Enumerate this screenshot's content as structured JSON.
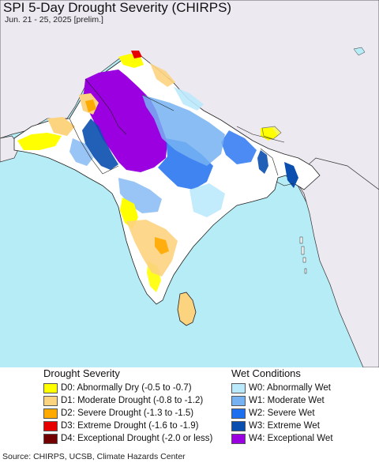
{
  "title": "SPI 5-Day Drought Severity (CHIRPS)",
  "subtitle": "Jun. 21 - 25, 2025 [prelim.]",
  "colors": {
    "ocean": "#b5ecf5",
    "land_outside": "#ece9f0",
    "land_neutral": "#ffffff",
    "border": "#222222",
    "d0": "#ffff00",
    "d1": "#fcd37f",
    "d2": "#ffaa00",
    "d3": "#e60000",
    "d4": "#730000",
    "w0": "#bbe9fc",
    "w1": "#76b2f2",
    "w2": "#1e6ef0",
    "w3": "#0a4fb0",
    "w4": "#9b00e0"
  },
  "legend": {
    "drought": {
      "heading": "Drought Severity",
      "items": [
        {
          "code": "d0",
          "label": "D0: Abnormally Dry (-0.5 to -0.7)"
        },
        {
          "code": "d1",
          "label": "D1: Moderate Drought (-0.8 to -1.2)"
        },
        {
          "code": "d2",
          "label": "D2: Severe Drought (-1.3 to -1.5)"
        },
        {
          "code": "d3",
          "label": "D3: Extreme Drought (-1.6 to -1.9)"
        },
        {
          "code": "d4",
          "label": "D4: Exceptional Drought (-2.0 or less)"
        }
      ]
    },
    "wet": {
      "heading": "Wet Conditions",
      "items": [
        {
          "code": "w0",
          "label": "W0: Abnormally Wet"
        },
        {
          "code": "w1",
          "label": "W1: Moderate Wet"
        },
        {
          "code": "w2",
          "label": "W2: Severe Wet"
        },
        {
          "code": "w3",
          "label": "W3: Extreme Wet"
        },
        {
          "code": "w4",
          "label": "W4: Exceptional Wet"
        }
      ]
    }
  },
  "source": "Source: CHIRPS, UCSB, Climate Hazards Center"
}
